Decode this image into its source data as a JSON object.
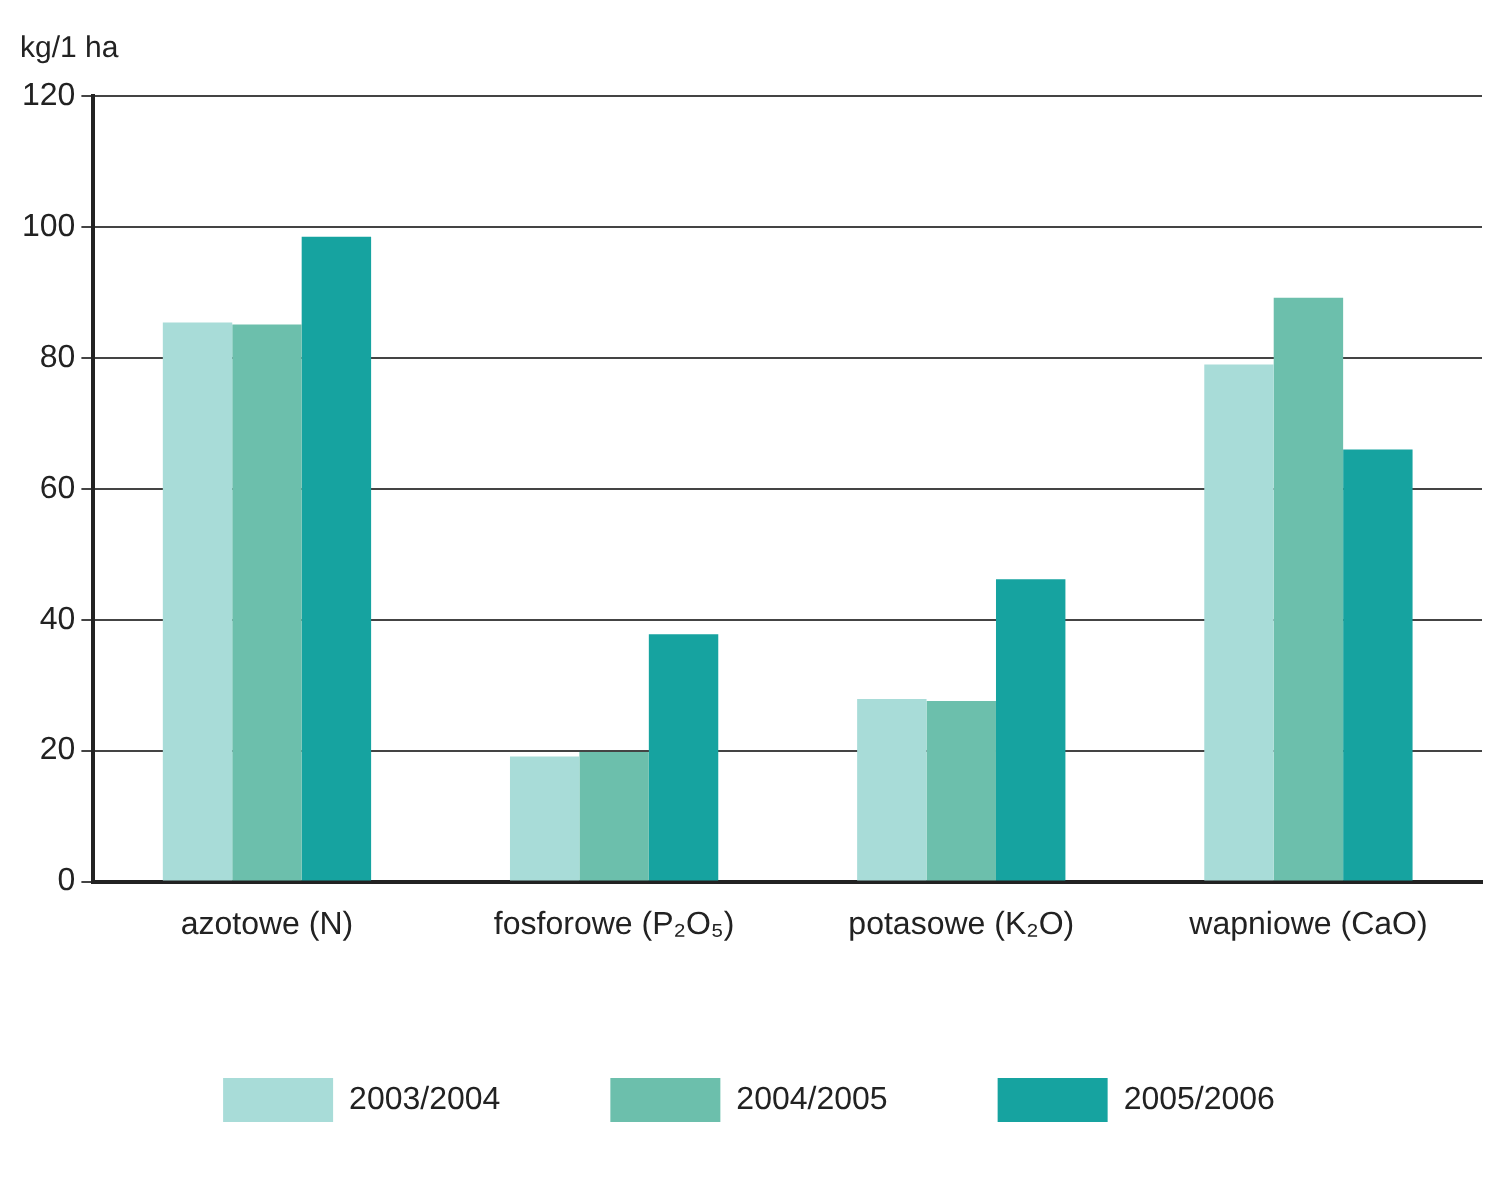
{
  "chart_data": {
    "type": "bar",
    "ylabel": "kg/1 ha",
    "categories": [
      "azotowe (N)",
      "fosforowe (P₂O₅)",
      "potasowe (K₂O)",
      "wapniowe (CaO)"
    ],
    "series": [
      {
        "name": "2003/2004",
        "color": "#a8dcd8",
        "values": [
          85.4,
          19.1,
          27.9,
          79
        ]
      },
      {
        "name": "2004/2005",
        "color": "#6cbfac",
        "values": [
          85.1,
          19.8,
          27.6,
          89.2
        ]
      },
      {
        "name": "2005/2006",
        "color": "#16a3a0",
        "values": [
          98.5,
          37.8,
          46.2,
          66
        ]
      }
    ],
    "ylim": [
      0,
      120
    ],
    "yticks": [
      0,
      20,
      40,
      60,
      80,
      100,
      120
    ],
    "grid": "y",
    "legend": "bottom"
  }
}
